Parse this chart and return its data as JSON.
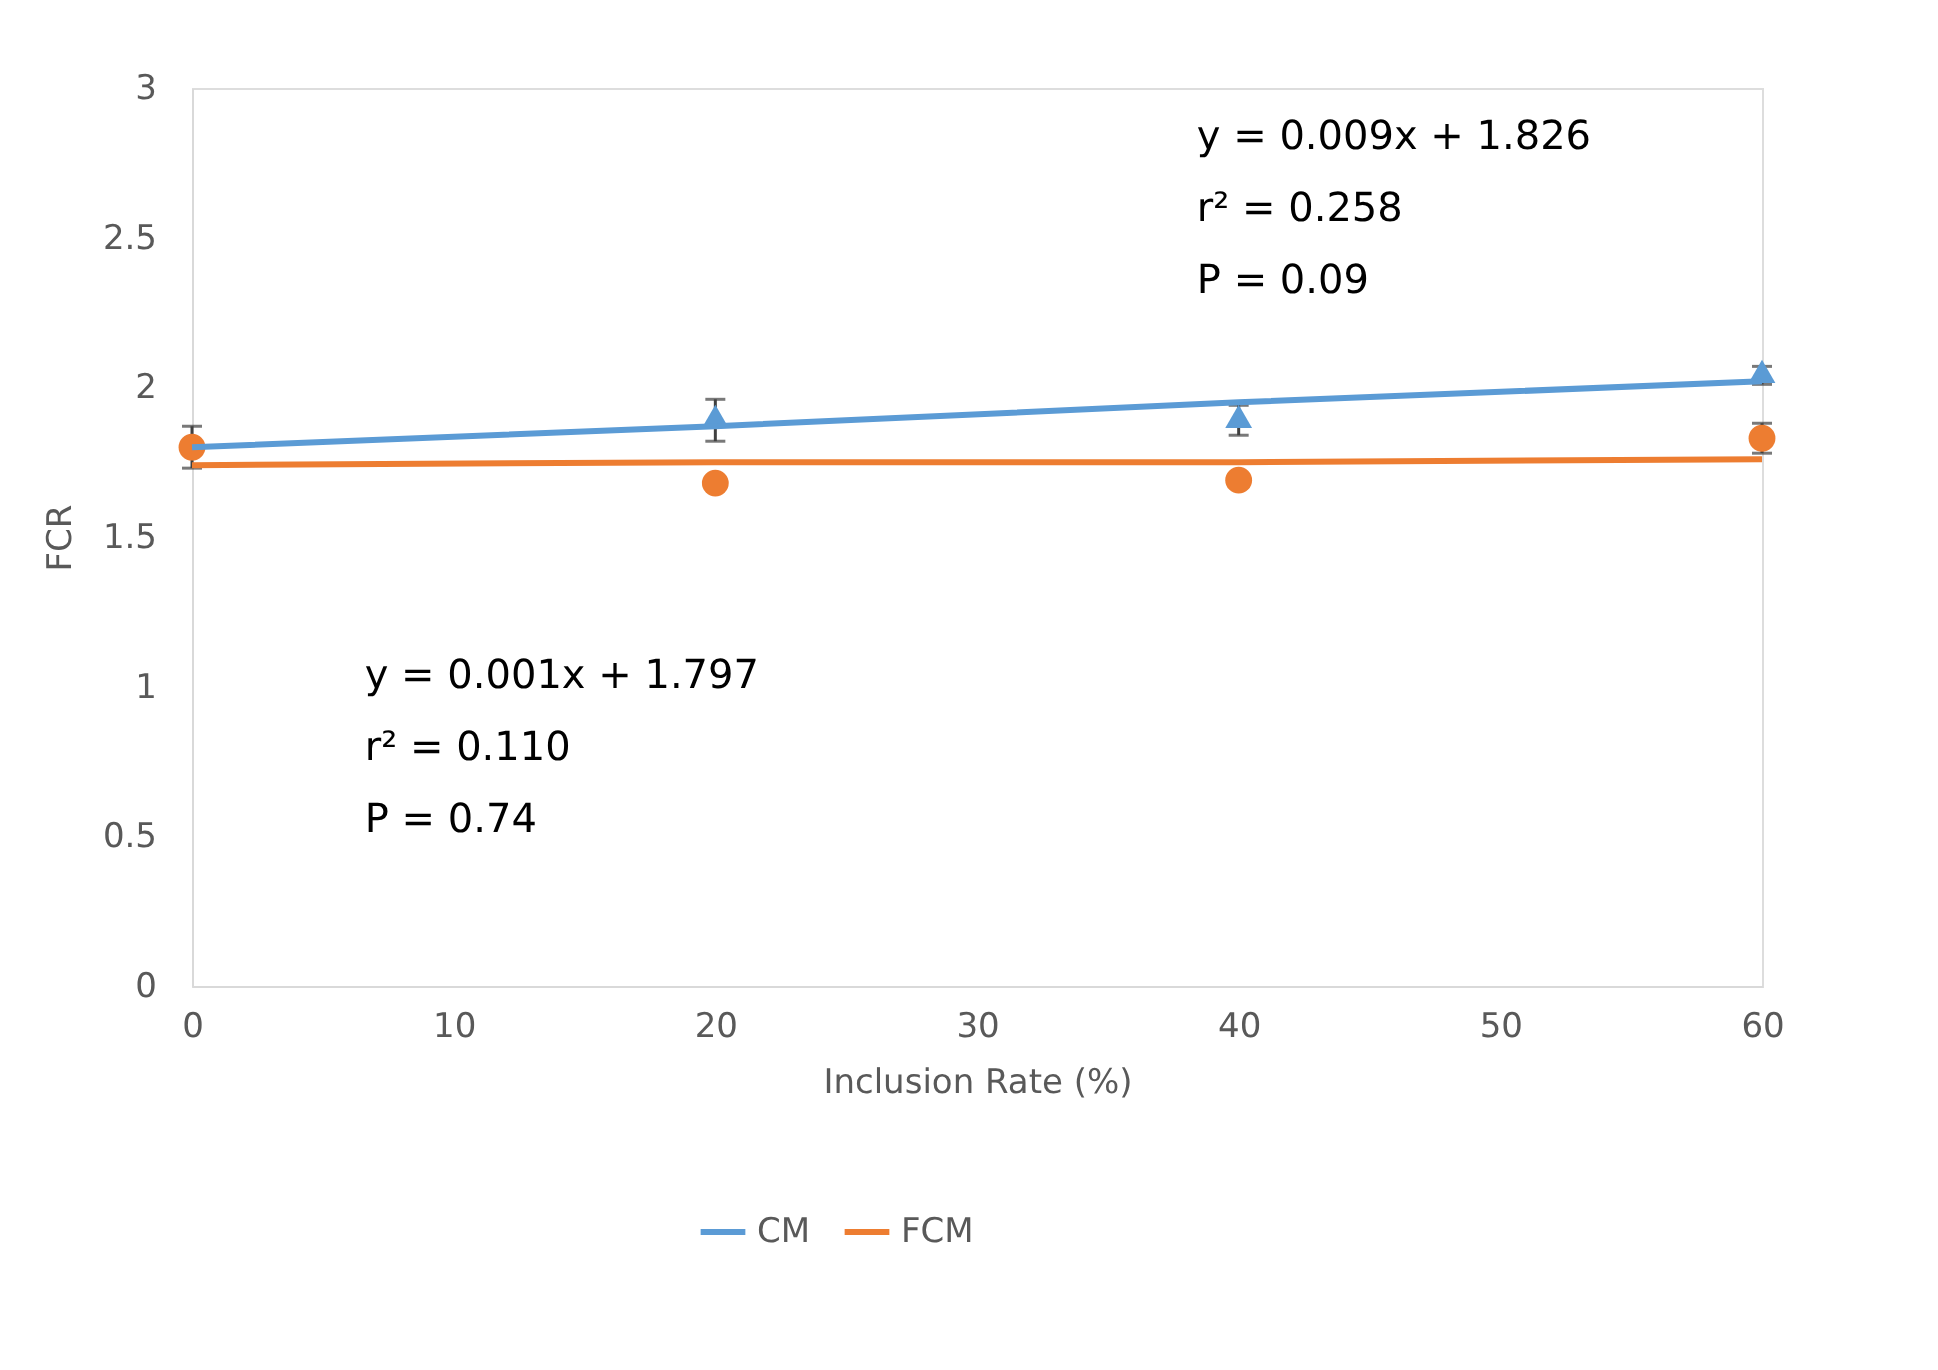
{
  "chart_data": {
    "type": "scatter",
    "xlabel": "Inclusion Rate (%)",
    "ylabel": "FCR",
    "xlim": [
      0,
      60
    ],
    "xticks": [
      0,
      10,
      20,
      30,
      40,
      50,
      60
    ],
    "ylim": [
      0,
      3
    ],
    "yticks": [
      {
        "value": 0,
        "label": "0"
      },
      0.5,
      {
        "value": 1,
        "label": "1"
      },
      1.5,
      {
        "value": 2,
        "label": "2"
      },
      2.5,
      {
        "value": 3,
        "label": "3"
      }
    ],
    "x": [
      0,
      20,
      40,
      60
    ],
    "grid": false,
    "legend": "bottom",
    "series": [
      {
        "color": "#5b9bd5",
        "marker": "triangle",
        "values": [
          null,
          1.89,
          1.89,
          2.04
        ],
        "errors": [
          null,
          0.07,
          0.05,
          0.03
        ]
      },
      {
        "color": "#ed7d31",
        "marker": "circle",
        "values": [
          1.8,
          1.68,
          1.69,
          1.83
        ],
        "errors": [
          0.07,
          null,
          null,
          0.05
        ]
      },
      {
        "type": "line",
        "name": "CM",
        "color": "#5b9bd5",
        "values": [
          1.8,
          1.87,
          1.95,
          2.02
        ]
      },
      {
        "type": "line",
        "name": "FCM",
        "color": "#ed7d31",
        "values": [
          1.74,
          1.75,
          1.75,
          1.76
        ]
      }
    ],
    "annotations": [
      "y = 0.009x + 1.826",
      "r² = 0.258",
      "P = 0.09",
      "y = 0.001x + 1.797",
      "r² = 0.110",
      "P = 0.74"
    ]
  }
}
